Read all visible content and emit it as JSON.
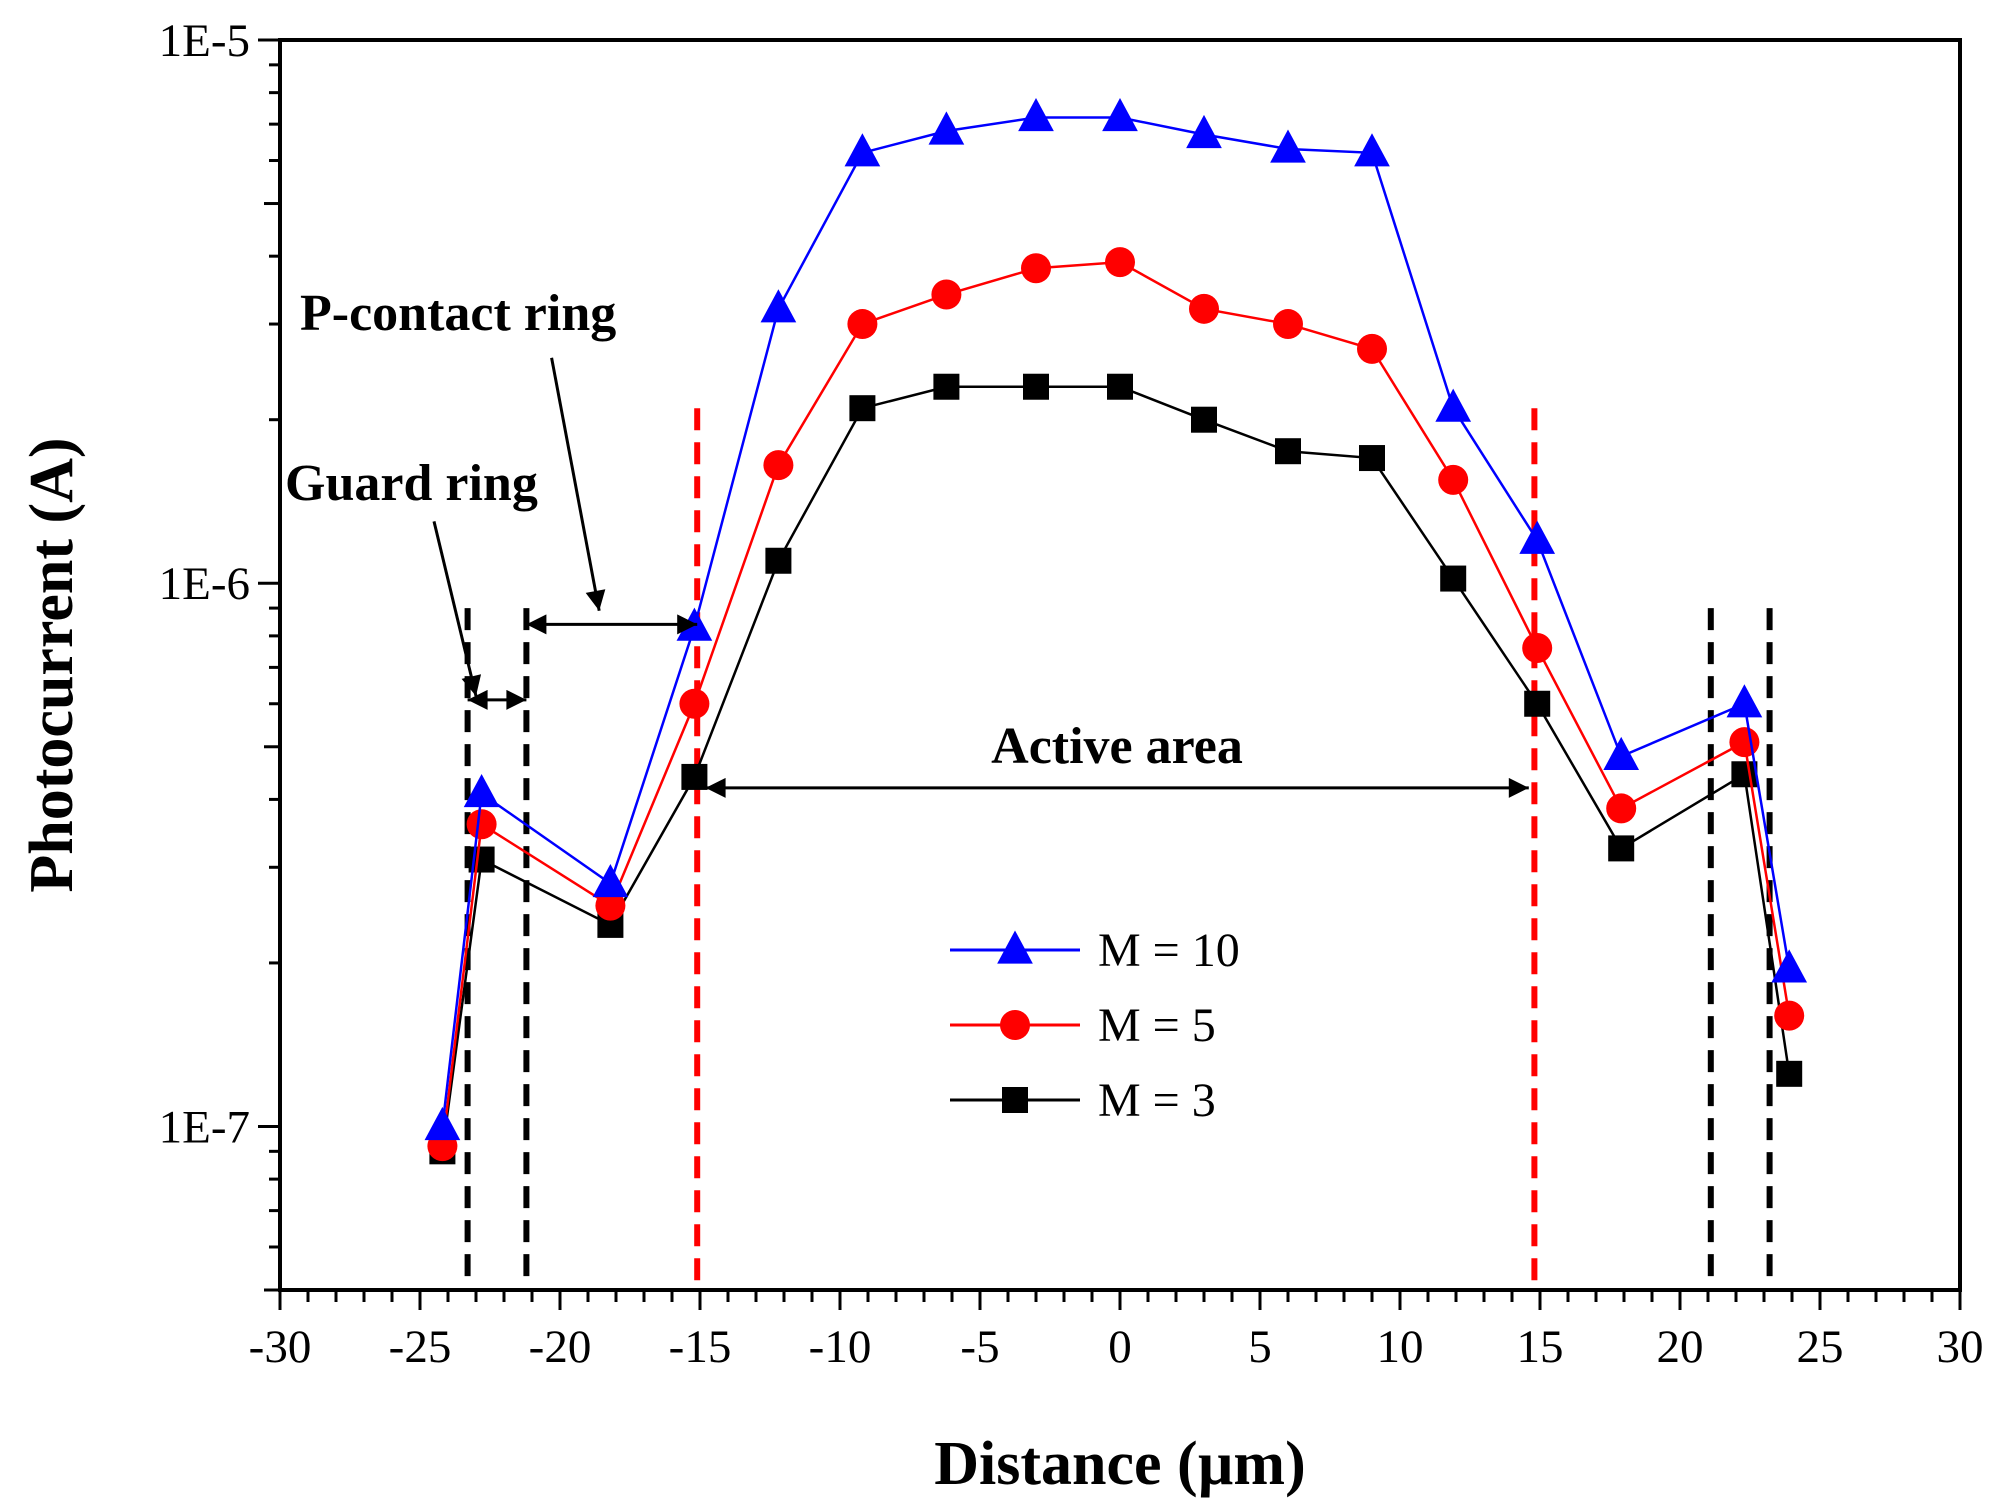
{
  "chart_data": {
    "type": "line",
    "title": "",
    "xlabel": "Distance (µm)",
    "ylabel": "Photocurrent (A)",
    "xlim": [
      -30,
      30
    ],
    "ylim": [
      5e-08,
      1e-05
    ],
    "yscale": "log",
    "x_ticks": [
      -30,
      -25,
      -20,
      -15,
      -10,
      -5,
      0,
      5,
      10,
      15,
      20,
      25,
      30
    ],
    "x_tick_labels": [
      "-30",
      "-25",
      "-20",
      "-15",
      "-10",
      "-5",
      "0",
      "5",
      "10",
      "15",
      "20",
      "25",
      "30"
    ],
    "y_ticks": [
      1e-07,
      1e-06,
      1e-05
    ],
    "y_tick_labels": [
      "1E-7",
      "1E-6",
      "1E-5"
    ],
    "legend_position": "lower-center",
    "series": [
      {
        "name": "M = 10",
        "color": "#0000ff",
        "marker": "triangle",
        "x": [
          -24.2,
          -22.8,
          -18.2,
          -15.2,
          -12.2,
          -9.2,
          -6.2,
          -3.0,
          0.0,
          3.0,
          6.0,
          9.0,
          11.9,
          14.9,
          17.9,
          22.3,
          23.9
        ],
        "values": [
          1e-07,
          4.1e-07,
          2.8e-07,
          8.3e-07,
          3.2e-06,
          6.2e-06,
          6.8e-06,
          7.2e-06,
          7.2e-06,
          6.7e-06,
          6.3e-06,
          6.2e-06,
          2.1e-06,
          1.2e-06,
          4.8e-07,
          6e-07,
          1.95e-07
        ]
      },
      {
        "name": "M = 5",
        "color": "#ff0000",
        "marker": "circle",
        "x": [
          -24.2,
          -22.8,
          -18.2,
          -15.2,
          -12.2,
          -9.2,
          -6.2,
          -3.0,
          0.0,
          3.0,
          6.0,
          9.0,
          11.9,
          14.9,
          17.9,
          22.3,
          23.9
        ],
        "values": [
          9.2e-08,
          3.6e-07,
          2.55e-07,
          6e-07,
          1.65e-06,
          3e-06,
          3.4e-06,
          3.8e-06,
          3.9e-06,
          3.2e-06,
          3e-06,
          2.7e-06,
          1.55e-06,
          7.6e-07,
          3.85e-07,
          5.1e-07,
          1.6e-07
        ]
      },
      {
        "name": "M = 3",
        "color": "#000000",
        "marker": "square",
        "x": [
          -24.2,
          -22.8,
          -18.2,
          -15.2,
          -12.2,
          -9.2,
          -6.2,
          -3.0,
          0.0,
          3.0,
          6.0,
          9.0,
          11.9,
          14.9,
          17.9,
          22.3,
          23.9
        ],
        "values": [
          9e-08,
          3.1e-07,
          2.35e-07,
          4.4e-07,
          1.1e-06,
          2.1e-06,
          2.3e-06,
          2.3e-06,
          2.3e-06,
          2e-06,
          1.75e-06,
          1.7e-06,
          1.02e-06,
          6e-07,
          3.25e-07,
          4.45e-07,
          1.25e-07
        ]
      }
    ],
    "reference_lines": [
      {
        "name": "guard-ring-left-outer",
        "x": -23.3,
        "color": "#000000",
        "style": "dashed"
      },
      {
        "name": "guard-ring-left-inner",
        "x": -21.2,
        "color": "#000000",
        "style": "dashed"
      },
      {
        "name": "active-area-left",
        "x": -15.1,
        "color": "#ff0000",
        "style": "dashed"
      },
      {
        "name": "active-area-right",
        "x": 14.8,
        "color": "#ff0000",
        "style": "dashed"
      },
      {
        "name": "guard-ring-right-inner",
        "x": 21.1,
        "color": "#000000",
        "style": "dashed"
      },
      {
        "name": "guard-ring-right-outer",
        "x": 23.2,
        "color": "#000000",
        "style": "dashed"
      }
    ],
    "annotations": {
      "p_contact_ring": "P-contact ring",
      "guard_ring": "Guard ring",
      "active_area": "Active area"
    },
    "spans": [
      {
        "name": "guard-ring-span",
        "x1": -23.3,
        "x2": -21.2,
        "y": 6.1e-07
      },
      {
        "name": "p-contact-ring-span",
        "x1": -21.2,
        "x2": -15.1,
        "y": 8.4e-07
      },
      {
        "name": "active-area-span",
        "x1": -14.8,
        "x2": 14.6,
        "y": 4.2e-07
      }
    ],
    "pointers": [
      {
        "name": "guard-ring-pointer",
        "from": [
          -24.5,
          1.3e-06
        ],
        "to": [
          -23.0,
          6.2e-07
        ]
      },
      {
        "name": "p-contact-ring-pointer",
        "from": [
          -20.3,
          2.6e-06
        ],
        "to": [
          -18.6,
          8.9e-07
        ]
      }
    ]
  }
}
